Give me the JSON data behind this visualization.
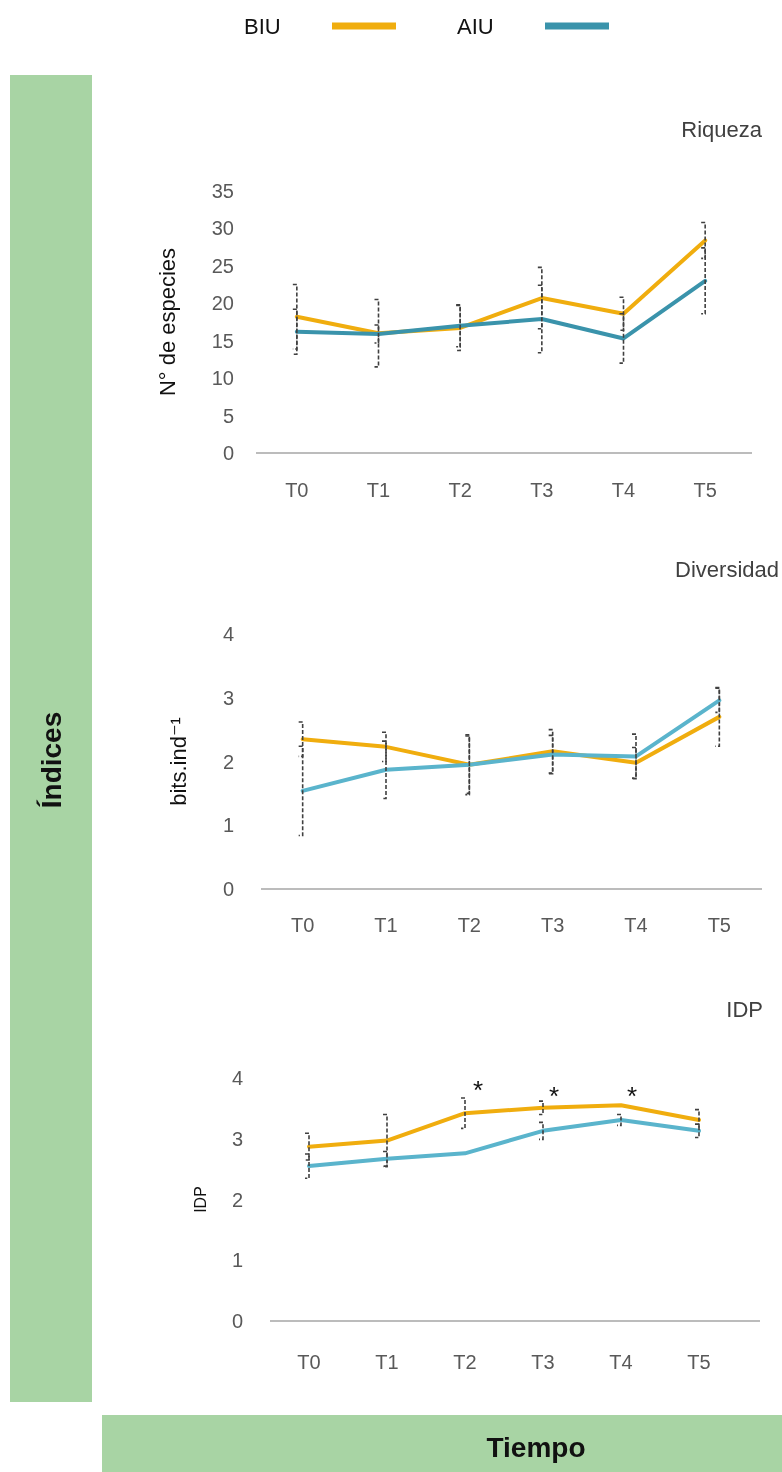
{
  "chart_data": [
    {
      "type": "line",
      "title": "Riqueza",
      "ylabel": "N° de especies",
      "categories": [
        "T0",
        "T1",
        "T2",
        "T3",
        "T4",
        "T5"
      ],
      "ylim": [
        0,
        35
      ],
      "yticks": [
        0,
        5,
        10,
        15,
        20,
        25,
        30,
        35
      ],
      "legend": "top",
      "annotations": [
        "Índices"
      ],
      "series": [
        {
          "name": "BIU",
          "color": "#f0ad0e",
          "values": [
            18.2,
            16.0,
            16.7,
            20.7,
            18.6,
            28.4
          ],
          "errors": [
            4.3,
            4.5,
            3.0,
            4.1,
            2.2,
            2.4
          ]
        },
        {
          "name": "AIU",
          "color": "#3a93ab",
          "values": [
            16.2,
            15.9,
            17.0,
            17.9,
            15.3,
            23.0
          ],
          "errors": [
            3.0,
            1.2,
            2.8,
            4.5,
            3.3,
            4.4
          ]
        }
      ]
    },
    {
      "type": "line",
      "title": "Diversidad",
      "ylabel": "bits.ind⁻¹",
      "categories": [
        "T0",
        "T1",
        "T2",
        "T3",
        "T4",
        "T5"
      ],
      "ylim": [
        0,
        4
      ],
      "yticks": [
        0,
        1,
        2,
        3,
        4
      ],
      "series": [
        {
          "color": "#f0ad0e",
          "values": [
            2.35,
            2.23,
            1.95,
            2.16,
            1.98,
            2.7
          ],
          "errors": [
            0.27,
            0.23,
            0.47,
            0.34,
            0.24,
            0.46
          ]
        },
        {
          "color": "#5ab4cc",
          "values": [
            1.54,
            1.87,
            1.95,
            2.11,
            2.08,
            2.96
          ],
          "errors": [
            0.7,
            0.45,
            0.45,
            0.3,
            0.35,
            0.19
          ]
        }
      ]
    },
    {
      "type": "line",
      "title": "IDP",
      "ylabel": "IDP",
      "xlabel": "Tiempo",
      "categories": [
        "T0",
        "T1",
        "T2",
        "T3",
        "T4",
        "T5"
      ],
      "ylim": [
        0,
        4
      ],
      "yticks": [
        0,
        1,
        2,
        3,
        4
      ],
      "annotations": [
        "*",
        "*",
        "*"
      ],
      "series": [
        {
          "color": "#f0ad0e",
          "values": [
            2.87,
            2.97,
            3.42,
            3.51,
            3.55,
            3.31
          ],
          "errors": [
            0.22,
            0.43,
            0.25,
            0.11,
            null,
            0.17
          ]
        },
        {
          "color": "#5ab4cc",
          "values": [
            2.55,
            2.67,
            2.76,
            3.13,
            3.31,
            3.13
          ],
          "errors": [
            0.2,
            0.12,
            null,
            0.14,
            0.09,
            0.11
          ]
        }
      ]
    }
  ]
}
